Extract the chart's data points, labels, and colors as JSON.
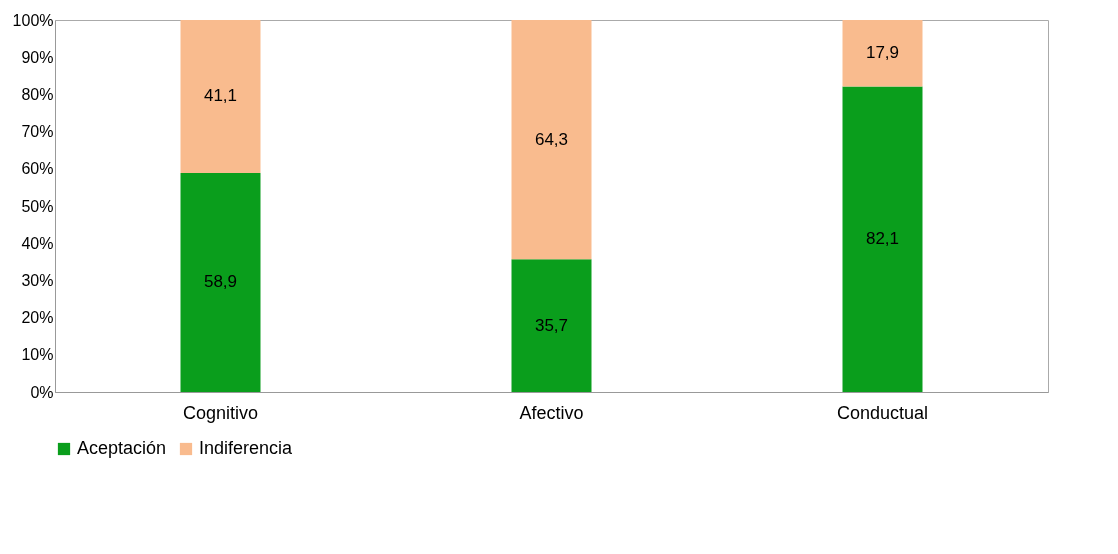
{
  "chart_data": {
    "type": "bar",
    "stacked": true,
    "categories": [
      "Cognitivo",
      "Afectivo",
      "Conductual"
    ],
    "series": [
      {
        "name": "Aceptación",
        "color": "#0a9e1c",
        "values": [
          58.9,
          35.7,
          82.1
        ],
        "value_labels": [
          "58,9",
          "35,7",
          "82,1"
        ]
      },
      {
        "name": "Indiferencia",
        "color": "#f9bb8e",
        "values": [
          41.1,
          64.3,
          17.9
        ],
        "value_labels": [
          "41,1",
          "64,3",
          "17,9"
        ]
      }
    ],
    "ylim": [
      0,
      100
    ],
    "yticks": [
      {
        "value": 0,
        "label": "0%"
      },
      {
        "value": 10,
        "label": "10%"
      },
      {
        "value": 20,
        "label": "20%"
      },
      {
        "value": 30,
        "label": "30%"
      },
      {
        "value": 40,
        "label": "40%"
      },
      {
        "value": 50,
        "label": "50%"
      },
      {
        "value": 60,
        "label": "60%"
      },
      {
        "value": 70,
        "label": "70%"
      },
      {
        "value": 80,
        "label": "80%"
      },
      {
        "value": 90,
        "label": "90%"
      },
      {
        "value": 100,
        "label": "100%"
      }
    ],
    "grid": false,
    "legend": "bottom"
  }
}
